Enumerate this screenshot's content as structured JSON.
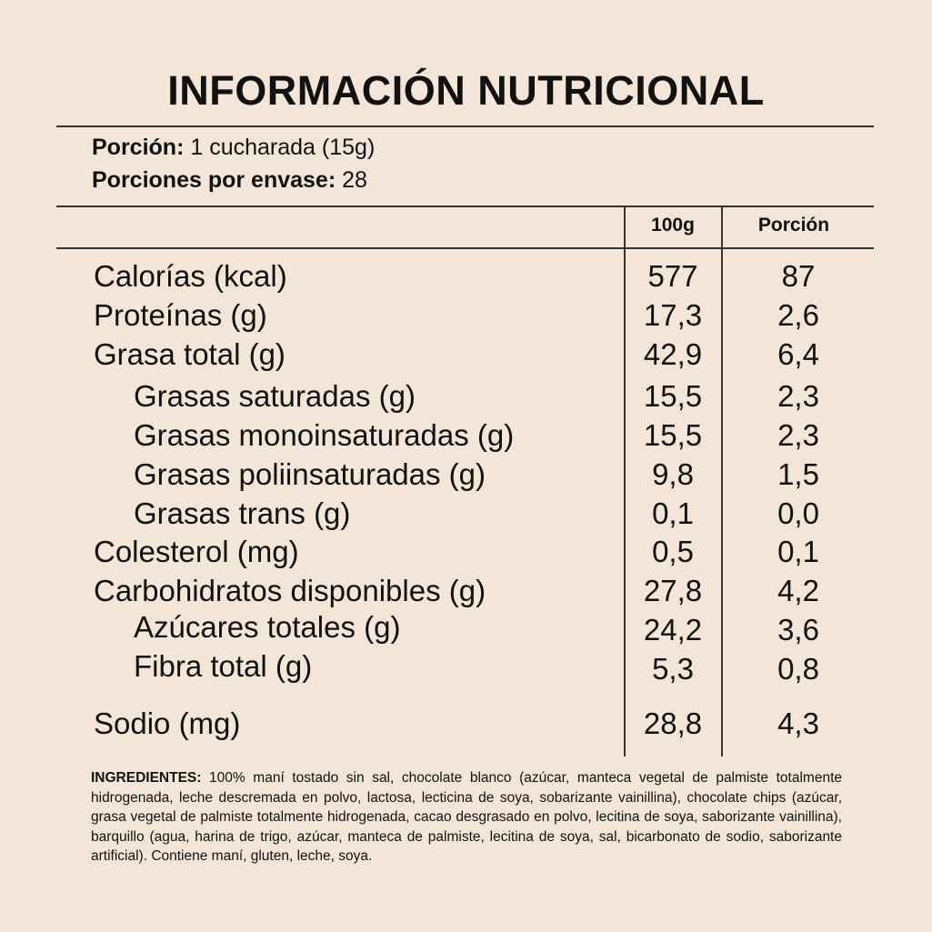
{
  "title": "INFORMACIÓN NUTRICIONAL",
  "serving": {
    "portion_label": "Porción:",
    "portion_value": "1 cucharada (15g)",
    "per_container_label": "Porciones por envase:",
    "per_container_value": "28"
  },
  "columns": {
    "per_100g": "100g",
    "per_portion": "Porción"
  },
  "rows": [
    {
      "label": "Calorías (kcal)",
      "v100": "577",
      "vport": "87"
    },
    {
      "label": "Proteínas (g)",
      "v100": "17,3",
      "vport": "2,6"
    },
    {
      "label": "Grasa total (g)",
      "v100": "42,9",
      "vport": "6,4"
    },
    {
      "label": "Grasas saturadas (g)",
      "v100": "15,5",
      "vport": "2,3"
    },
    {
      "label": "Grasas monoinsaturadas (g)",
      "v100": "15,5",
      "vport": "2,3"
    },
    {
      "label": "Grasas poliinsaturadas (g)",
      "v100": "9,8",
      "vport": "1,5"
    },
    {
      "label": "Grasas trans (g)",
      "v100": "0,1",
      "vport": "0,0"
    },
    {
      "label": "Colesterol (mg)",
      "v100": "0,5",
      "vport": "0,1"
    },
    {
      "label": "Carbohidratos disponibles (g)",
      "v100": "27,8",
      "vport": "4,2"
    },
    {
      "label": "Azúcares totales (g)",
      "v100": "24,2",
      "vport": "3,6"
    },
    {
      "label": "Fibra total (g)",
      "v100": "5,3",
      "vport": "0,8"
    },
    {
      "label": "Sodio (mg)",
      "v100": "28,8",
      "vport": "4,3"
    }
  ],
  "ingredients": {
    "label": "INGREDIENTES:",
    "text": "100% maní tostado sin sal, chocolate blanco (azúcar, manteca vegetal de palmiste totalmente hidrogenada, leche descremada en polvo, lactosa, lecticina de soya, sobarizante vainillina), chocolate chips (azúcar, grasa vegetal de palmiste totalmente hidrogenada, cacao desgrasado en polvo, lecitina de soya, saborizante vainillina), barquillo (agua, harina de trigo, azúcar, manteca de palmiste, lecitina de soya, sal, bicarbonato de sodio, saborizante artificial). Contiene maní, gluten, leche, soya."
  }
}
